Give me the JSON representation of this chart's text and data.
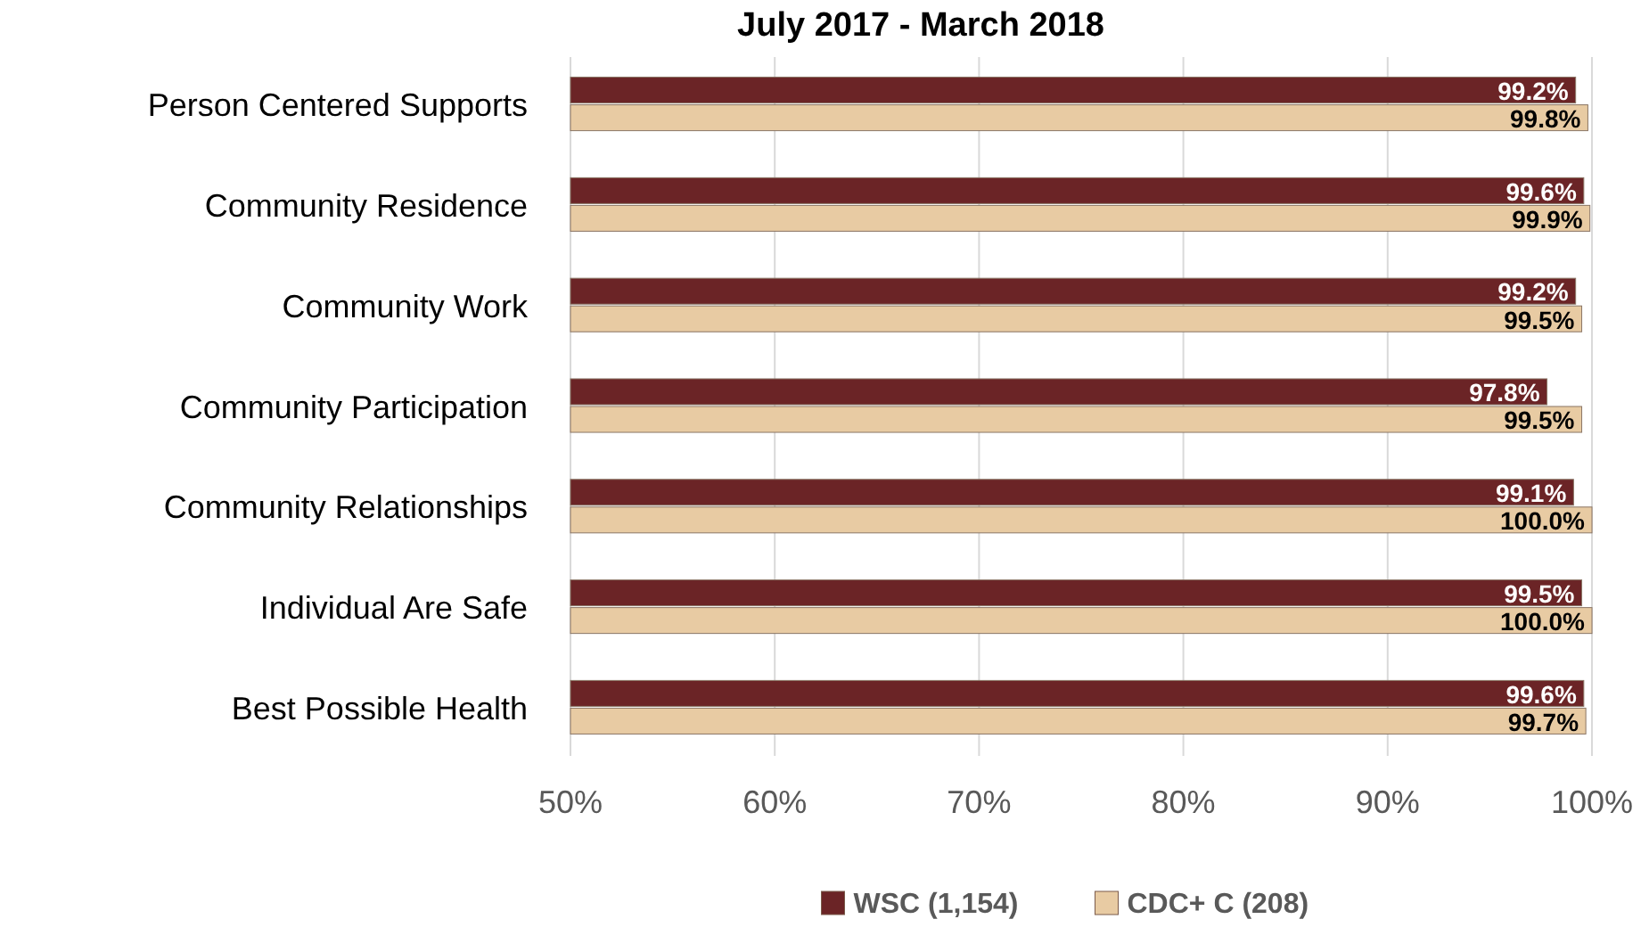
{
  "chart_data": {
    "type": "bar",
    "orientation": "horizontal",
    "title": "July 2017 - March 2018",
    "categories": [
      "Person Centered Supports",
      "Community Residence",
      "Community Work",
      "Community Participation",
      "Community Relationships",
      "Individual Are Safe",
      "Best Possible Health"
    ],
    "series": [
      {
        "name": "WSC (1,154)",
        "color": "#6b2426",
        "values": [
          99.2,
          99.6,
          99.2,
          97.8,
          99.1,
          99.5,
          99.6
        ],
        "value_labels": [
          "99.2%",
          "99.6%",
          "99.2%",
          "97.8%",
          "99.1%",
          "99.5%",
          "99.6%"
        ]
      },
      {
        "name": "CDC+ C (208)",
        "color": "#e8cba3",
        "values": [
          99.8,
          99.9,
          99.5,
          99.5,
          100.0,
          100.0,
          99.7
        ],
        "value_labels": [
          "99.8%",
          "99.9%",
          "99.5%",
          "99.5%",
          "100.0%",
          "100.0%",
          "99.7%"
        ]
      }
    ],
    "xlim": [
      50,
      100
    ],
    "xticks": [
      {
        "value": 50,
        "label": "50%"
      },
      {
        "value": 60,
        "label": "60%"
      },
      {
        "value": 70,
        "label": "70%"
      },
      {
        "value": 80,
        "label": "80%"
      },
      {
        "value": 90,
        "label": "90%"
      },
      {
        "value": 100,
        "label": "100%"
      }
    ],
    "grid": "x",
    "legend": "bottom"
  }
}
